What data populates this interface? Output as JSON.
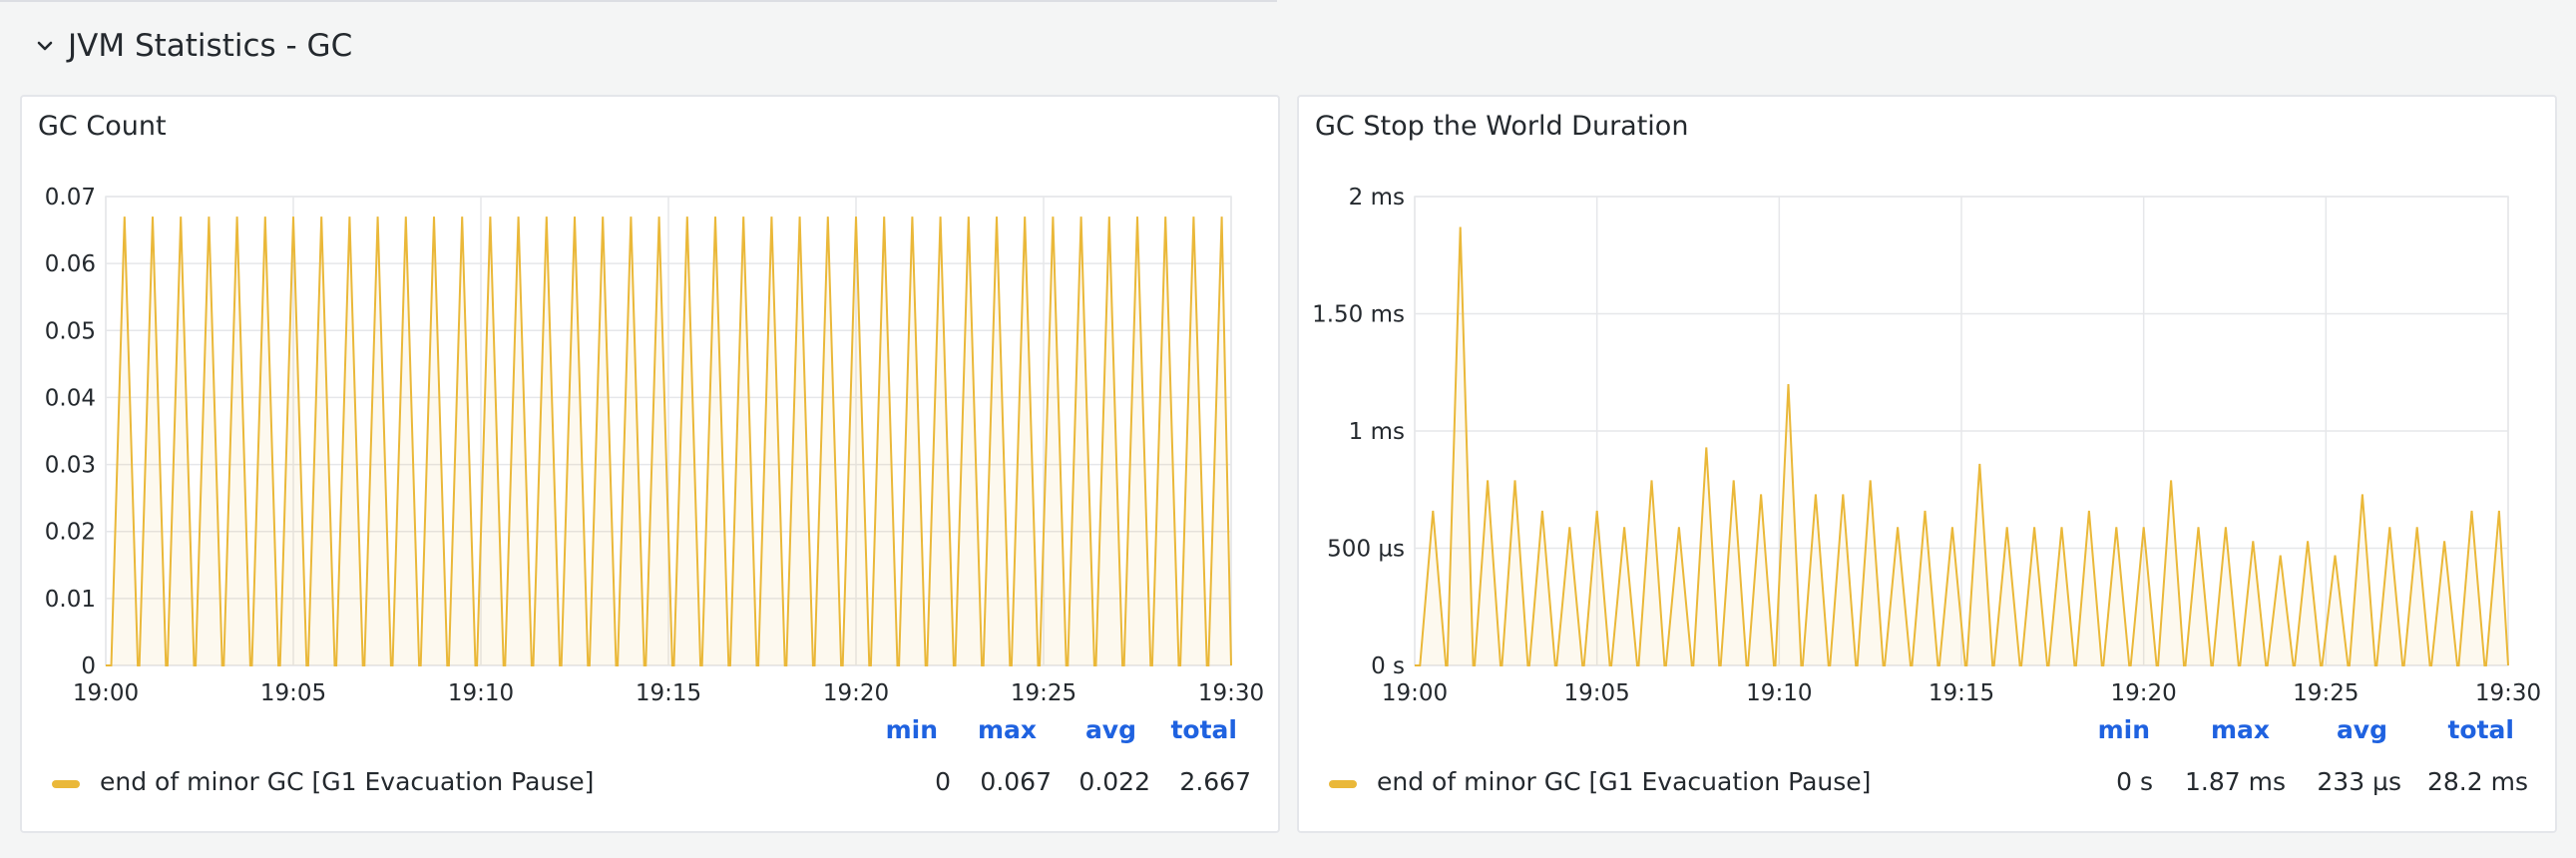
{
  "row": {
    "title": "JVM Statistics - GC"
  },
  "colors": {
    "series": "#eab839",
    "legend_header": "#1f62e0",
    "grid": "#e6e7ea"
  },
  "panels": [
    {
      "title": "GC Count",
      "legend": {
        "headers": [
          "min",
          "max",
          "avg",
          "total"
        ],
        "series_name": "end of minor GC [G1 Evacuation Pause]",
        "values": [
          "0",
          "0.067",
          "0.022",
          "2.667"
        ]
      }
    },
    {
      "title": "GC Stop the World Duration",
      "legend": {
        "headers": [
          "min",
          "max",
          "avg",
          "total"
        ],
        "series_name": "end of minor GC [G1 Evacuation Pause]",
        "values": [
          "0 s",
          "1.87 ms",
          "233 µs",
          "28.2 ms"
        ]
      }
    }
  ],
  "chart_data": [
    {
      "type": "line",
      "title": "GC Count",
      "x_ticks": [
        "19:00",
        "19:05",
        "19:10",
        "19:15",
        "19:20",
        "19:25",
        "19:30"
      ],
      "y_ticks": [
        "0",
        "0.01",
        "0.02",
        "0.03",
        "0.04",
        "0.05",
        "0.06",
        "0.07"
      ],
      "xlim_minutes": [
        0,
        30
      ],
      "ylim": [
        0,
        0.07
      ],
      "grid": true,
      "series": [
        {
          "name": "end of minor GC [G1 Evacuation Pause]",
          "peak_minutes": [
            0.5,
            1.25,
            2.0,
            2.75,
            3.5,
            4.25,
            5.0,
            5.75,
            6.5,
            7.25,
            8.0,
            8.75,
            9.5,
            10.25,
            11.0,
            11.75,
            12.5,
            13.25,
            14.0,
            14.75,
            15.5,
            16.25,
            17.0,
            17.75,
            18.5,
            19.25,
            20.0,
            20.75,
            21.5,
            22.25,
            23.0,
            23.75,
            24.5,
            25.25,
            26.0,
            26.75,
            27.5,
            28.25,
            29.0,
            29.75
          ],
          "peak_values": [
            0.067,
            0.067,
            0.067,
            0.067,
            0.067,
            0.067,
            0.067,
            0.067,
            0.067,
            0.067,
            0.067,
            0.067,
            0.067,
            0.067,
            0.067,
            0.067,
            0.067,
            0.067,
            0.067,
            0.067,
            0.067,
            0.067,
            0.067,
            0.067,
            0.067,
            0.067,
            0.067,
            0.067,
            0.067,
            0.067,
            0.067,
            0.067,
            0.067,
            0.067,
            0.067,
            0.067,
            0.067,
            0.067,
            0.067,
            0.067
          ]
        }
      ]
    },
    {
      "type": "line",
      "title": "GC Stop the World Duration",
      "x_ticks": [
        "19:00",
        "19:05",
        "19:10",
        "19:15",
        "19:20",
        "19:25",
        "19:30"
      ],
      "y_ticks": [
        "0 s",
        "500 µs",
        "1 ms",
        "1.50 ms",
        "2 ms"
      ],
      "xlim_minutes": [
        0,
        30
      ],
      "ylim_us": [
        0,
        2000
      ],
      "grid": true,
      "series": [
        {
          "name": "end of minor GC [G1 Evacuation Pause]",
          "peak_minutes": [
            0.5,
            1.25,
            2.0,
            2.75,
            3.5,
            4.25,
            5.0,
            5.75,
            6.5,
            7.25,
            8.0,
            8.75,
            9.5,
            10.25,
            11.0,
            11.75,
            12.5,
            13.25,
            14.0,
            14.75,
            15.5,
            16.25,
            17.0,
            17.75,
            18.5,
            19.25,
            20.0,
            20.75,
            21.5,
            22.25,
            23.0,
            23.75,
            24.5,
            25.25,
            26.0,
            26.75,
            27.5,
            28.25,
            29.0,
            29.75
          ],
          "peak_values_us": [
            660,
            1870,
            790,
            790,
            660,
            590,
            660,
            590,
            790,
            590,
            930,
            790,
            730,
            1200,
            730,
            730,
            790,
            590,
            660,
            590,
            860,
            590,
            590,
            590,
            660,
            590,
            590,
            790,
            590,
            590,
            530,
            470,
            530,
            470,
            730,
            590,
            590,
            530,
            660,
            660
          ]
        }
      ]
    }
  ]
}
